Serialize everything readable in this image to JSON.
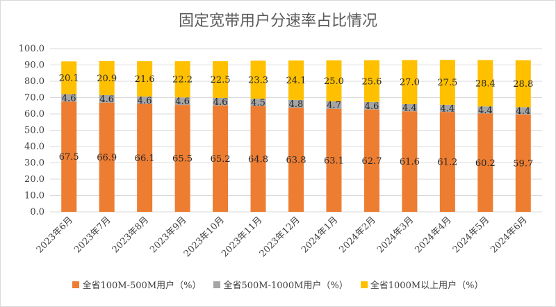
{
  "chart_data": {
    "type": "bar",
    "stacked": true,
    "title": "固定宽带用户分速率占比情况",
    "categories": [
      "2023年6月",
      "2023年7月",
      "2023年8月",
      "2023年9月",
      "2023年10月",
      "2023年11月",
      "2023年12月",
      "2024年1月",
      "2024年2月",
      "2024年3月",
      "2024年4月",
      "2024年5月",
      "2024年6月"
    ],
    "series": [
      {
        "name": "全省100M-500M用户（%）",
        "color": "#ED7D31",
        "values": [
          67.5,
          66.9,
          66.1,
          65.5,
          65.2,
          64.8,
          63.8,
          63.1,
          62.7,
          61.6,
          61.2,
          60.2,
          59.7
        ]
      },
      {
        "name": "全省500M-1000M用户（%）",
        "color": "#A5A5A5",
        "values": [
          4.6,
          4.6,
          4.6,
          4.6,
          4.6,
          4.5,
          4.8,
          4.7,
          4.6,
          4.4,
          4.4,
          4.4,
          4.4
        ]
      },
      {
        "name": "全省1000M以上用户（%）",
        "color": "#FFC000",
        "values": [
          20.1,
          20.9,
          21.6,
          22.2,
          22.5,
          23.3,
          24.1,
          25.0,
          25.6,
          27.0,
          27.5,
          28.4,
          28.8
        ]
      }
    ],
    "ylim": [
      0,
      100
    ],
    "yticks": [
      "0.0",
      "10.0",
      "20.0",
      "30.0",
      "40.0",
      "50.0",
      "60.0",
      "70.0",
      "80.0",
      "90.0",
      "100.0"
    ],
    "grid": true,
    "legend_position": "bottom"
  }
}
